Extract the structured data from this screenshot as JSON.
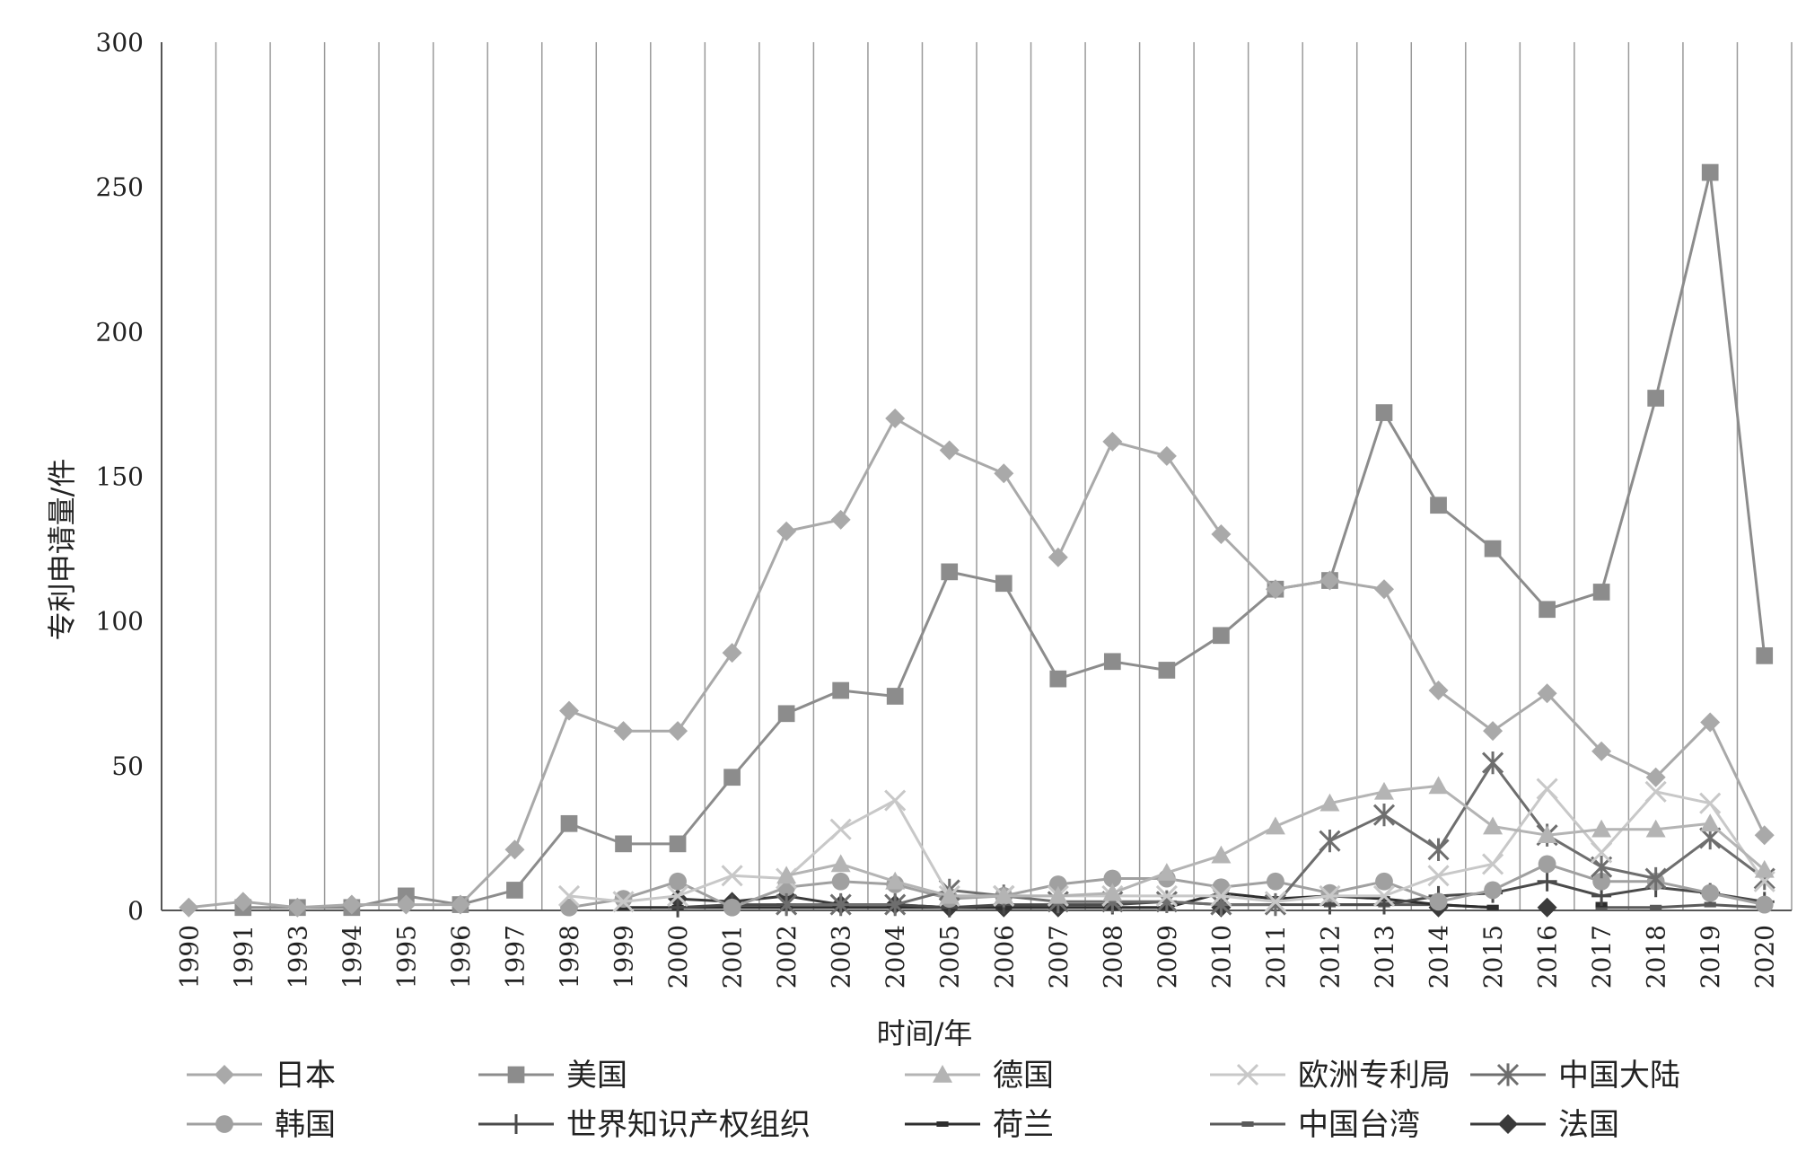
{
  "chart_data": {
    "type": "line",
    "title": "",
    "xlabel": "时间/年",
    "ylabel": "专利申请量/件",
    "ylim": [
      0,
      300
    ],
    "yticks": [
      0,
      50,
      100,
      150,
      200,
      250,
      300
    ],
    "grid": "vertical",
    "legend_position": "bottom",
    "categories": [
      "1990",
      "1991",
      "1993",
      "1994",
      "1995",
      "1996",
      "1997",
      "1998",
      "1999",
      "2000",
      "2001",
      "2002",
      "2003",
      "2004",
      "2005",
      "2006",
      "2007",
      "2008",
      "2009",
      "2010",
      "2011",
      "2012",
      "2013",
      "2014",
      "2015",
      "2016",
      "2017",
      "2018",
      "2019",
      "2020"
    ],
    "series": [
      {
        "name": "日本",
        "marker": "diamond",
        "color": "#a9a9a9",
        "values": [
          1,
          3,
          1,
          2,
          2,
          2,
          21,
          69,
          62,
          62,
          89,
          131,
          135,
          170,
          159,
          151,
          122,
          162,
          157,
          130,
          111,
          114,
          111,
          76,
          62,
          75,
          55,
          46,
          65,
          26
        ]
      },
      {
        "name": "美国",
        "marker": "square",
        "color": "#8c8c8c",
        "values": [
          null,
          1,
          1,
          1,
          5,
          2,
          7,
          30,
          23,
          23,
          46,
          68,
          76,
          74,
          117,
          113,
          80,
          86,
          83,
          95,
          111,
          114,
          172,
          140,
          125,
          104,
          110,
          177,
          255,
          88
        ]
      },
      {
        "name": "德国",
        "marker": "triangle",
        "color": "#b4b4b4",
        "values": [
          null,
          null,
          null,
          null,
          null,
          null,
          null,
          null,
          null,
          null,
          null,
          12,
          16,
          10,
          5,
          5,
          5,
          6,
          13,
          19,
          29,
          37,
          41,
          43,
          29,
          26,
          28,
          28,
          30,
          14
        ]
      },
      {
        "name": "欧洲专利局",
        "marker": "x",
        "color": "#c8c8c8",
        "values": [
          null,
          null,
          null,
          null,
          null,
          null,
          null,
          5,
          3,
          5,
          12,
          11,
          28,
          38,
          5,
          5,
          5,
          5,
          5,
          5,
          3,
          5,
          5,
          12,
          16,
          42,
          20,
          41,
          37,
          10
        ]
      },
      {
        "name": "中国大陆",
        "marker": "asterisk",
        "color": "#6e6e6e",
        "values": [
          null,
          null,
          null,
          null,
          null,
          null,
          null,
          null,
          null,
          null,
          null,
          2,
          2,
          2,
          7,
          5,
          3,
          3,
          3,
          2,
          2,
          24,
          33,
          21,
          51,
          26,
          15,
          11,
          25,
          11
        ]
      },
      {
        "name": "韩国",
        "marker": "circle",
        "color": "#a0a0a0",
        "values": [
          null,
          null,
          null,
          null,
          null,
          null,
          null,
          1,
          4,
          10,
          1,
          8,
          10,
          9,
          4,
          5,
          9,
          11,
          11,
          8,
          10,
          6,
          10,
          3,
          7,
          16,
          10,
          10,
          6,
          2
        ]
      },
      {
        "name": "世界知识产权组织",
        "marker": "plus",
        "color": "#4a4a4a",
        "values": [
          null,
          null,
          null,
          null,
          null,
          null,
          null,
          null,
          null,
          1,
          2,
          2,
          2,
          2,
          1,
          2,
          2,
          2,
          3,
          2,
          2,
          2,
          2,
          5,
          6,
          10,
          5,
          8,
          6,
          3
        ]
      },
      {
        "name": "荷兰",
        "marker": "dash",
        "color": "#2e2e2e",
        "values": [
          null,
          null,
          null,
          null,
          null,
          null,
          null,
          null,
          1,
          1,
          1,
          1,
          1,
          1,
          1,
          1,
          1,
          1,
          1,
          6,
          4,
          5,
          4,
          2,
          1,
          null,
          2,
          null,
          null,
          null
        ]
      },
      {
        "name": "中国台湾",
        "marker": "dash",
        "color": "#5a5a5a",
        "values": [
          null,
          null,
          null,
          null,
          null,
          null,
          null,
          null,
          null,
          null,
          null,
          null,
          null,
          null,
          null,
          null,
          null,
          null,
          null,
          null,
          null,
          2,
          2,
          2,
          1,
          null,
          1,
          1,
          2,
          1
        ]
      },
      {
        "name": "法国",
        "marker": "diamond",
        "color": "#3a3a3a",
        "values": [
          null,
          null,
          null,
          null,
          null,
          null,
          null,
          null,
          null,
          4,
          3,
          5,
          2,
          2,
          1,
          1,
          1,
          null,
          null,
          1,
          null,
          null,
          null,
          1,
          null,
          1,
          null,
          null,
          null,
          null
        ]
      }
    ]
  }
}
